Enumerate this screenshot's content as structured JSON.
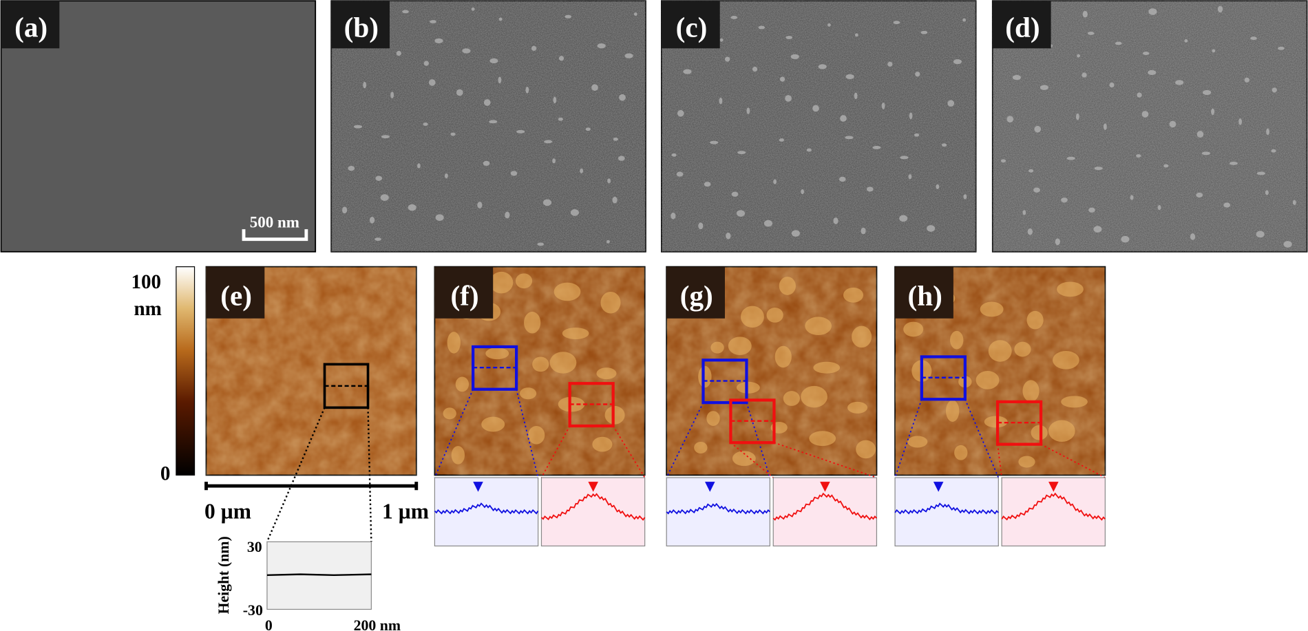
{
  "panels": {
    "sem": [
      "(a)",
      "(b)",
      "(c)",
      "(d)"
    ],
    "afm": [
      "(e)",
      "(f)",
      "(g)",
      "(h)"
    ]
  },
  "scale_bar": "500 nm",
  "colorbar": {
    "max": "100",
    "unit": "nm",
    "min": "0"
  },
  "afm_scale": {
    "start": "0 µm",
    "end": "1 µm"
  },
  "profile": {
    "y_label": "Height (nm)",
    "y_max": "30",
    "y_min": "-30",
    "x_min": "0",
    "x_max": "200 nm"
  }
}
